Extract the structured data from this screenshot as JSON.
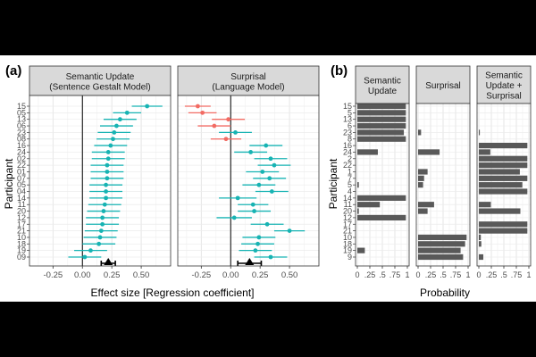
{
  "figure": {
    "panel_a_label": "(a)",
    "panel_b_label": "(b)",
    "y_axis_label": "Participant",
    "x_label_a": "Effect size [Regression coefficient]",
    "x_label_b": "Probability"
  },
  "chart_data": [
    {
      "type": "scatter",
      "subplot": "a-left",
      "title": "Semantic Update\n(Sentence Gestalt Model)",
      "xlabel": "Effect size [Regression coefficient]",
      "ylabel": "Participant",
      "xlim": [
        -0.45,
        0.75
      ],
      "xticks": [
        "-0.25",
        "0.00",
        "0.25",
        "0.50"
      ],
      "xtick_values": [
        -0.25,
        0,
        0.25,
        0.5
      ],
      "grid": true,
      "participants": [
        "15",
        "05",
        "13",
        "06",
        "23",
        "08",
        "16",
        "24",
        "02",
        "22",
        "01",
        "07",
        "05",
        "04",
        "14",
        "11",
        "20",
        "12",
        "17",
        "21",
        "10",
        "18",
        "19",
        "09"
      ],
      "estimates": [
        0.55,
        0.38,
        0.32,
        0.29,
        0.27,
        0.26,
        0.24,
        0.22,
        0.22,
        0.21,
        0.21,
        0.21,
        0.2,
        0.2,
        0.2,
        0.19,
        0.18,
        0.17,
        0.17,
        0.16,
        0.15,
        0.14,
        0.07,
        0.02
      ],
      "ci_low": [
        0.42,
        0.26,
        0.18,
        0.15,
        0.13,
        0.12,
        0.1,
        0.08,
        0.08,
        0.07,
        0.07,
        0.07,
        0.06,
        0.06,
        0.06,
        0.05,
        0.04,
        0.03,
        0.03,
        0.02,
        0.01,
        0.0,
        -0.07,
        -0.12
      ],
      "ci_high": [
        0.68,
        0.5,
        0.46,
        0.43,
        0.41,
        0.4,
        0.38,
        0.36,
        0.36,
        0.35,
        0.35,
        0.35,
        0.34,
        0.34,
        0.34,
        0.33,
        0.32,
        0.31,
        0.31,
        0.3,
        0.29,
        0.28,
        0.21,
        0.16
      ],
      "colors": [
        "teal",
        "teal",
        "teal",
        "teal",
        "teal",
        "teal",
        "teal",
        "teal",
        "teal",
        "teal",
        "teal",
        "teal",
        "teal",
        "teal",
        "teal",
        "teal",
        "teal",
        "teal",
        "teal",
        "teal",
        "teal",
        "teal",
        "teal",
        "teal"
      ],
      "group_mean": {
        "estimate": 0.22,
        "ci_low": 0.16,
        "ci_high": 0.28
      }
    },
    {
      "type": "scatter",
      "subplot": "a-right",
      "title": "Surprisal\n(Language Model)",
      "xlabel": "Effect size [Regression coefficient]",
      "xlim": [
        -0.45,
        0.75
      ],
      "xticks": [
        "-0.25",
        "0.00",
        "0.25",
        "0.50"
      ],
      "xtick_values": [
        -0.25,
        0,
        0.25,
        0.5
      ],
      "grid": true,
      "estimates": [
        -0.28,
        -0.24,
        -0.02,
        -0.14,
        0.04,
        -0.04,
        0.3,
        0.17,
        0.34,
        0.37,
        0.27,
        0.33,
        0.24,
        0.35,
        0.06,
        0.19,
        0.2,
        0.03,
        0.31,
        0.5,
        0.24,
        0.23,
        0.21,
        0.34
      ],
      "ci_low": [
        -0.39,
        -0.36,
        -0.16,
        -0.28,
        -0.1,
        -0.17,
        0.16,
        0.03,
        0.2,
        0.23,
        0.13,
        0.19,
        0.1,
        0.21,
        -0.1,
        0.06,
        0.06,
        -0.12,
        0.17,
        0.37,
        0.1,
        0.09,
        0.07,
        0.2
      ],
      "ci_high": [
        -0.17,
        -0.12,
        0.12,
        0.0,
        0.18,
        0.09,
        0.44,
        0.31,
        0.48,
        0.51,
        0.41,
        0.47,
        0.38,
        0.49,
        0.22,
        0.32,
        0.34,
        0.18,
        0.45,
        0.63,
        0.38,
        0.37,
        0.35,
        0.48
      ],
      "colors": [
        "red",
        "red",
        "red",
        "red",
        "teal",
        "red",
        "teal",
        "teal",
        "teal",
        "teal",
        "teal",
        "teal",
        "teal",
        "teal",
        "teal",
        "teal",
        "teal",
        "teal",
        "teal",
        "teal",
        "teal",
        "teal",
        "teal",
        "teal"
      ],
      "group_mean": {
        "estimate": 0.16,
        "ci_low": 0.06,
        "ci_high": 0.26
      }
    },
    {
      "type": "bar",
      "subplot": "b",
      "orientation": "horizontal",
      "xlabel": "Probability",
      "ylabel": "Participant",
      "xlim": [
        0,
        1
      ],
      "xticks": [
        "0",
        ".25",
        ".5",
        ".75",
        "1"
      ],
      "xtick_values": [
        0,
        0.25,
        0.5,
        0.75,
        1
      ],
      "participants": [
        "15",
        "5",
        "13",
        "6",
        "23",
        "8",
        "16",
        "24",
        "2",
        "22",
        "1",
        "7",
        "5",
        "4",
        "14",
        "11",
        "20",
        "12",
        "17",
        "21",
        "10",
        "18",
        "19",
        "9"
      ],
      "series": [
        {
          "name": "Semantic\nUpdate",
          "values": [
            0.97,
            0.97,
            0.97,
            0.97,
            0.93,
            0.97,
            0,
            0.41,
            0,
            0,
            0,
            0,
            0.03,
            0,
            0.97,
            0.45,
            0.03,
            0.97,
            0,
            0,
            0,
            0,
            0.15,
            0
          ]
        },
        {
          "name": "Surprisal",
          "values": [
            0,
            0,
            0,
            0,
            0.06,
            0,
            0,
            0.43,
            0,
            0,
            0.19,
            0.12,
            0.1,
            0,
            0,
            0.32,
            0.19,
            0,
            0,
            0,
            0.97,
            0.94,
            0.85,
            0.9
          ]
        },
        {
          "name": "Semantic\nUpdate +\nSurprisal",
          "values": [
            0,
            0,
            0,
            0,
            0.02,
            0,
            0.97,
            0.23,
            0.97,
            0.97,
            0.82,
            0.97,
            0.87,
            0.97,
            0,
            0.24,
            0.83,
            0,
            0.97,
            0.97,
            0.04,
            0.05,
            0,
            0.09
          ]
        }
      ]
    }
  ]
}
